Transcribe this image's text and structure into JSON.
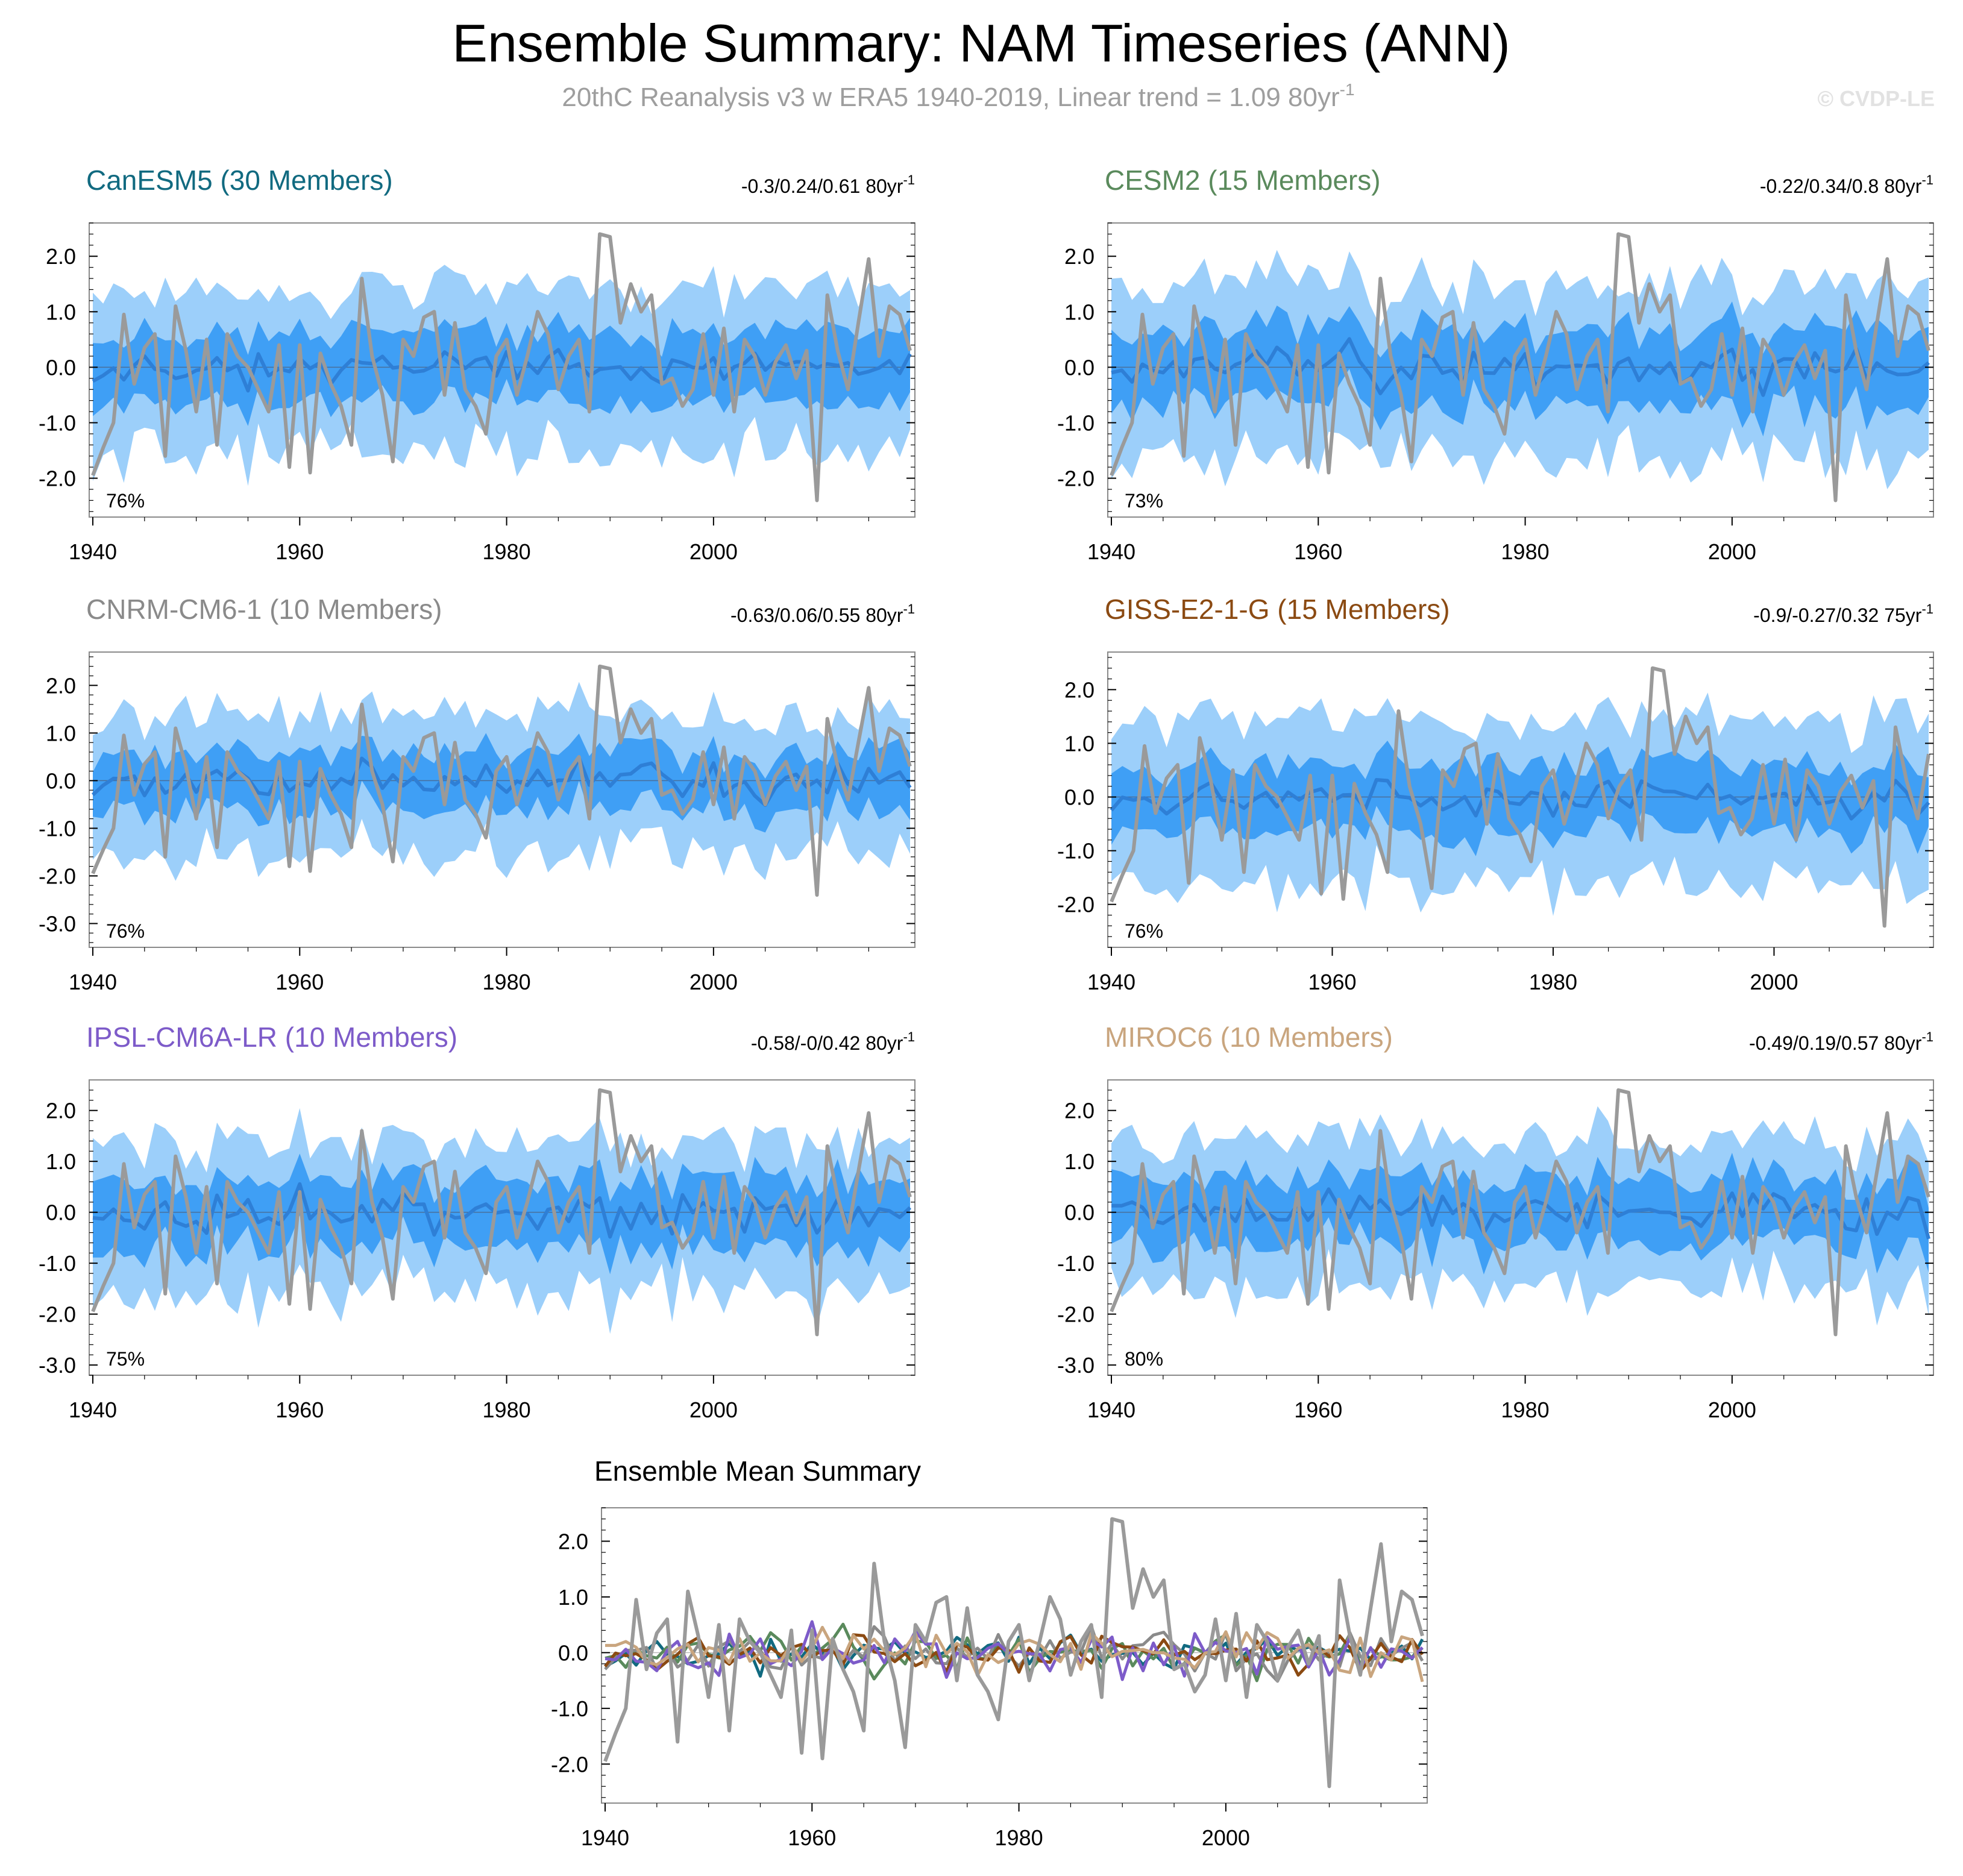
{
  "header": {
    "title": "Ensemble Summary: NAM Timeseries (ANN)",
    "subtitle_main": "20thC Reanalysis v3 w ERA5 1940-2019, Linear trend = 1.09 80yr",
    "subtitle_sup": "-1",
    "copyright": "© CVDP-LE"
  },
  "colors": {
    "band_outer": "#9ccffa",
    "band_inner": "#3f9ff5",
    "ensemble_mean": "#2e7fd6",
    "observations": "#9a9a9a",
    "zero_line": "#4a6f9a"
  },
  "chart_data": [
    {
      "type": "line",
      "title": "CanESM5 (30 Members)",
      "title_color": "#116a80",
      "trend_text": "-0.3/0.24/0.61 80yr",
      "trend_sup": "-1",
      "percent_label": "76%",
      "x_start": 1940,
      "x_end": 2019,
      "ylim": [
        -2.7,
        2.6
      ],
      "yticks": [
        -2.0,
        -1.0,
        0.0,
        1.0,
        2.0
      ],
      "ytick_labels": [
        "-2.0",
        "-1.0",
        "0.0",
        "1.0",
        "2.0"
      ],
      "xticks": [
        1940,
        1960,
        1980,
        2000
      ],
      "xtick_labels": [
        "1940",
        "1960",
        "1980",
        "2000"
      ],
      "spread_outer": 1.35,
      "spread_inner": 0.62,
      "mean_amp": 0.22,
      "seed": 11
    },
    {
      "type": "line",
      "title": "CESM2 (15 Members)",
      "title_color": "#5a8a5c",
      "trend_text": "-0.22/0.34/0.8 80yr",
      "trend_sup": "-1",
      "percent_label": "73%",
      "x_start": 1940,
      "x_end": 2019,
      "ylim": [
        -2.7,
        2.6
      ],
      "yticks": [
        -2.0,
        -1.0,
        0.0,
        1.0,
        2.0
      ],
      "ytick_labels": [
        "-2.0",
        "-1.0",
        "0.0",
        "1.0",
        "2.0"
      ],
      "xticks": [
        1940,
        1960,
        1980,
        2000
      ],
      "xtick_labels": [
        "1940",
        "1960",
        "1980",
        "2000"
      ],
      "spread_outer": 1.45,
      "spread_inner": 0.7,
      "mean_amp": 0.3,
      "seed": 23
    },
    {
      "type": "line",
      "title": "CNRM-CM6-1 (10 Members)",
      "title_color": "#8a8a8a",
      "trend_text": "-0.63/0.06/0.55 80yr",
      "trend_sup": "-1",
      "percent_label": "76%",
      "x_start": 1940,
      "x_end": 2019,
      "ylim": [
        -3.5,
        2.7
      ],
      "yticks": [
        -3.0,
        -2.0,
        -1.0,
        0.0,
        1.0,
        2.0
      ],
      "ytick_labels": [
        "-3.0",
        "-2.0",
        "-1.0",
        "0.0",
        "1.0",
        "2.0"
      ],
      "xticks": [
        1940,
        1960,
        1980,
        2000
      ],
      "xtick_labels": [
        "1940",
        "1960",
        "1980",
        "2000"
      ],
      "spread_outer": 1.35,
      "spread_inner": 0.62,
      "mean_amp": 0.3,
      "seed": 37
    },
    {
      "type": "line",
      "title": "GISS-E2-1-G (15 Members)",
      "title_color": "#8b4a12",
      "trend_text": "-0.9/-0.27/0.32 75yr",
      "trend_sup": "-1",
      "percent_label": "76%",
      "x_start": 1940,
      "x_end": 2014,
      "ylim": [
        -2.8,
        2.7
      ],
      "yticks": [
        -2.0,
        -1.0,
        0.0,
        1.0,
        2.0
      ],
      "ytick_labels": [
        "-2.0",
        "-1.0",
        "0.0",
        "1.0",
        "2.0"
      ],
      "xticks": [
        1940,
        1960,
        1980,
        2000
      ],
      "xtick_labels": [
        "1940",
        "1960",
        "1980",
        "2000"
      ],
      "spread_outer": 1.45,
      "spread_inner": 0.62,
      "mean_amp": 0.25,
      "seed": 53
    },
    {
      "type": "line",
      "title": "IPSL-CM6A-LR (10 Members)",
      "title_color": "#7d5bc9",
      "trend_text": "-0.58/-0/0.42 80yr",
      "trend_sup": "-1",
      "percent_label": "75%",
      "x_start": 1940,
      "x_end": 2019,
      "ylim": [
        -3.2,
        2.6
      ],
      "yticks": [
        -3.0,
        -2.0,
        -1.0,
        0.0,
        1.0,
        2.0
      ],
      "ytick_labels": [
        "-3.0",
        "-2.0",
        "-1.0",
        "0.0",
        "1.0",
        "2.0"
      ],
      "xticks": [
        1940,
        1960,
        1980,
        2000
      ],
      "xtick_labels": [
        "1940",
        "1960",
        "1980",
        "2000"
      ],
      "spread_outer": 1.4,
      "spread_inner": 0.65,
      "mean_amp": 0.35,
      "seed": 71
    },
    {
      "type": "line",
      "title": "MIROC6 (10 Members)",
      "title_color": "#c9a57e",
      "trend_text": "-0.49/0.19/0.57 80yr",
      "trend_sup": "-1",
      "percent_label": "80%",
      "x_start": 1940,
      "x_end": 2019,
      "ylim": [
        -3.2,
        2.6
      ],
      "yticks": [
        -3.0,
        -2.0,
        -1.0,
        0.0,
        1.0,
        2.0
      ],
      "ytick_labels": [
        "-3.0",
        "-2.0",
        "-1.0",
        "0.0",
        "1.0",
        "2.0"
      ],
      "xticks": [
        1940,
        1960,
        1980,
        2000
      ],
      "xtick_labels": [
        "1940",
        "1960",
        "1980",
        "2000"
      ],
      "spread_outer": 1.4,
      "spread_inner": 0.65,
      "mean_amp": 0.35,
      "seed": 89
    },
    {
      "type": "line",
      "title": "Ensemble Mean Summary",
      "x_start": 1940,
      "x_end": 2019,
      "ylim": [
        -2.7,
        2.6
      ],
      "yticks": [
        -2.0,
        -1.0,
        0.0,
        1.0,
        2.0
      ],
      "ytick_labels": [
        "-2.0",
        "-1.0",
        "0.0",
        "1.0",
        "2.0"
      ],
      "xticks": [
        1940,
        1960,
        1980,
        2000
      ],
      "xtick_labels": [
        "1940",
        "1960",
        "1980",
        "2000"
      ],
      "series": [
        {
          "name": "CanESM5",
          "color": "#116a80"
        },
        {
          "name": "CESM2",
          "color": "#5a8a5c"
        },
        {
          "name": "CNRM-CM6-1",
          "color": "#8a8a8a"
        },
        {
          "name": "GISS-E2-1-G",
          "color": "#8b4a12"
        },
        {
          "name": "IPSL-CM6A-LR",
          "color": "#7d5bc9"
        },
        {
          "name": "MIROC6",
          "color": "#c9a57e"
        }
      ]
    }
  ],
  "observations": {
    "name": "20thC Reanalysis v3 w ERA5",
    "start_year": 1940,
    "values": [
      -1.95,
      -1.45,
      -1.0,
      0.95,
      -0.3,
      0.35,
      0.6,
      -1.6,
      1.1,
      0.3,
      -0.8,
      0.5,
      -1.4,
      0.6,
      0.2,
      0.0,
      -0.4,
      -0.8,
      0.4,
      -1.8,
      0.4,
      -1.9,
      0.25,
      -0.3,
      -0.7,
      -1.4,
      1.6,
      0.2,
      -0.5,
      -1.7,
      0.5,
      0.2,
      0.9,
      1.0,
      -0.5,
      0.8,
      -0.4,
      -0.7,
      -1.2,
      0.2,
      0.5,
      -0.5,
      0.2,
      1.0,
      0.6,
      -0.4,
      0.2,
      0.5,
      -0.8,
      2.4,
      2.35,
      0.8,
      1.5,
      1.0,
      1.3,
      -0.3,
      -0.2,
      -0.7,
      -0.4,
      0.6,
      -0.5,
      0.7,
      -0.8,
      0.5,
      0.2,
      -0.5,
      0.1,
      0.4,
      -0.2,
      0.3,
      -2.4,
      1.3,
      0.3,
      -0.4,
      0.8,
      1.95,
      0.2,
      1.1,
      0.95,
      0.3
    ]
  }
}
